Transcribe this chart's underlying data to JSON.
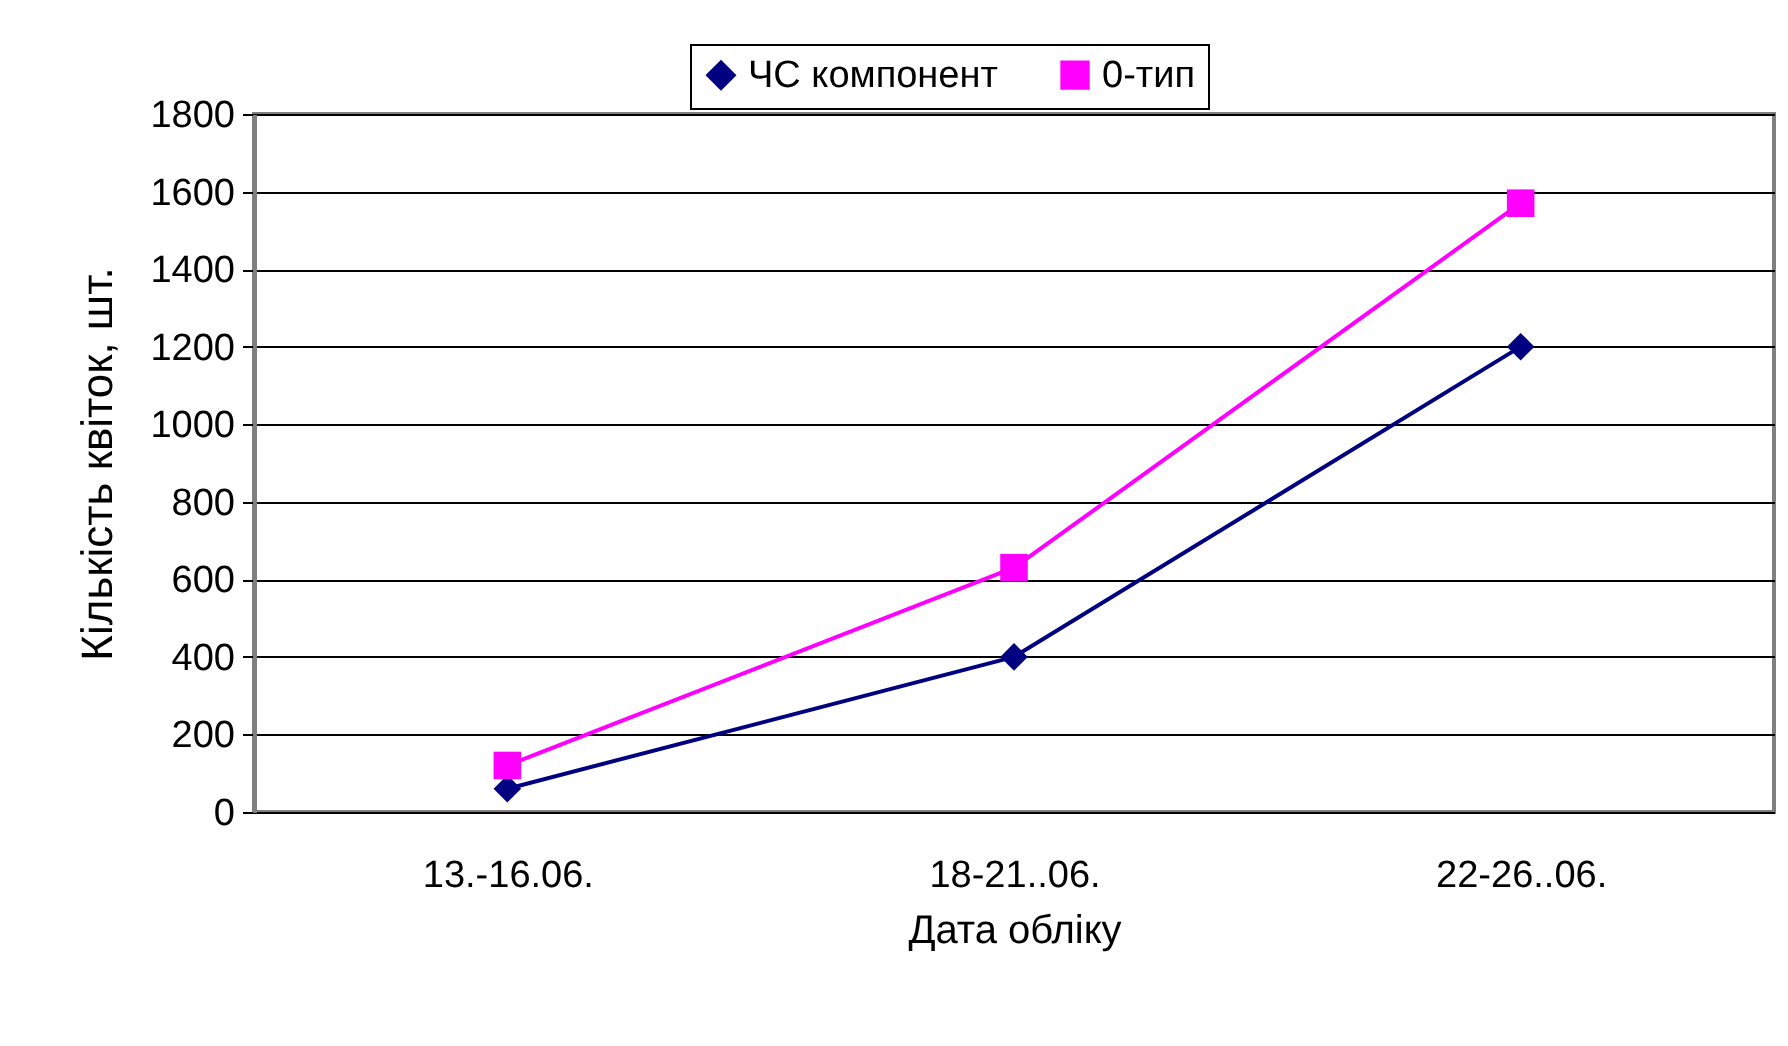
{
  "chart_data": {
    "type": "line",
    "xlabel": "Дата обліку",
    "ylabel": "Кількість квіток, шт.",
    "categories": [
      "13.-16.06.",
      "18-21..06.",
      "22-26..06."
    ],
    "series": [
      {
        "name": "ЧС компонент",
        "color": "#000080",
        "marker": "diamond",
        "values": [
          60,
          400,
          1200
        ]
      },
      {
        "name": "0-тип",
        "color": "#ff00ff",
        "marker": "square",
        "values": [
          120,
          630,
          1570
        ]
      }
    ],
    "ylim": [
      0,
      1800
    ],
    "yticks": [
      0,
      200,
      400,
      600,
      800,
      1000,
      1200,
      1400,
      1600,
      1800
    ],
    "grid": "y",
    "legend": "top"
  }
}
